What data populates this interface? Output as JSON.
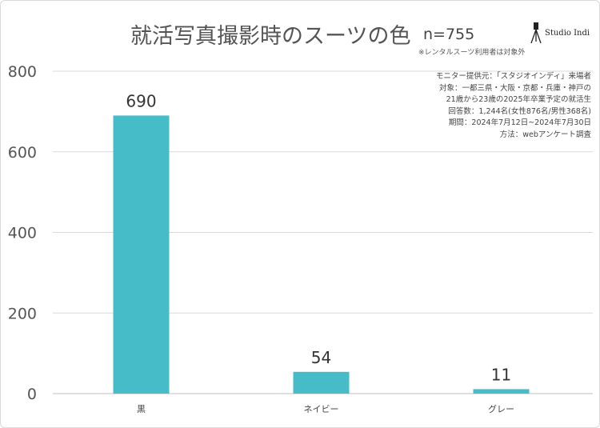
{
  "chart_data": {
    "type": "bar",
    "title": "就活写真撮影時のスーツの色",
    "subtitle": "n=755",
    "note": "※レンタルスーツ利用者は対象外",
    "categories": [
      "黒",
      "ネイビー",
      "グレー"
    ],
    "values": [
      690,
      54,
      11
    ],
    "data_labels": [
      "690",
      "54",
      "11"
    ],
    "yticks": [
      "0",
      "200",
      "400",
      "600",
      "800"
    ],
    "ylim": [
      0,
      800
    ],
    "grid": true,
    "bar_color": "#45bcc8",
    "xlabel": "",
    "ylabel": ""
  },
  "info_lines": [
    "モニター提供元：「スタジオインディ」来場者",
    "対象：一都三県・大阪・京都・兵庫・神戸の",
    "21歳から23歳の2025年卒業予定の就活生",
    "回答数：1,244名(女性876名/男性368名)",
    "期間：2024年7月12日~2024年7月30日",
    "方法：webアンケート調査"
  ],
  "logo": {
    "text": "Studio Indi",
    "icon": "camera-tripod-icon"
  }
}
